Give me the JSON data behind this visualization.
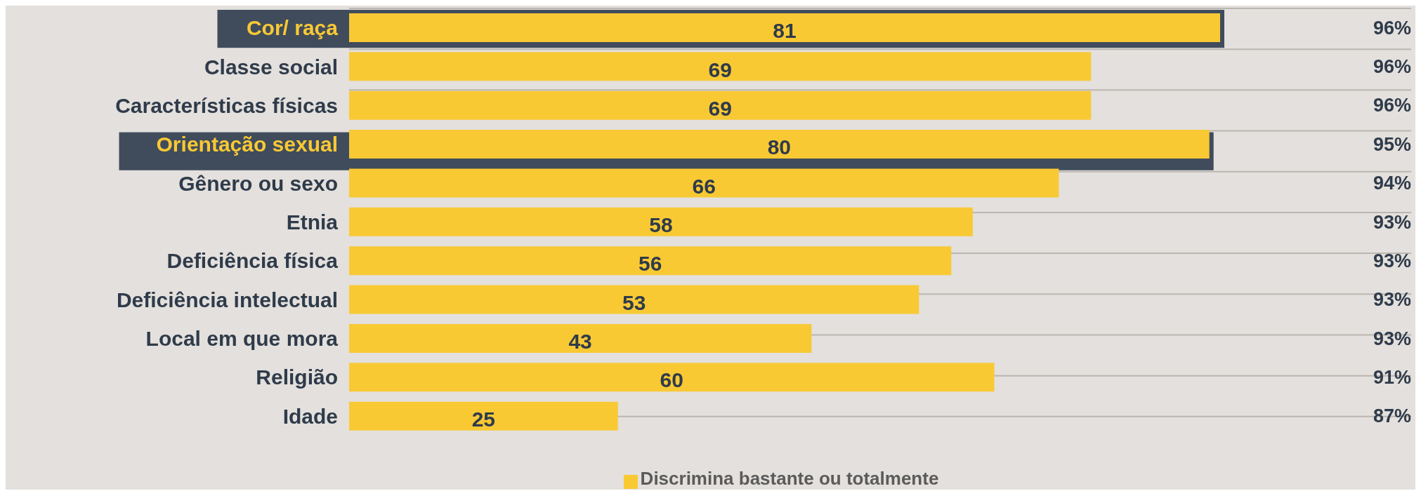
{
  "chart_data": {
    "type": "bar",
    "orientation": "horizontal",
    "categories": [
      "Cor/ raça",
      "Classe social",
      "Características físicas",
      "Orientação sexual",
      "Gênero ou sexo",
      "Etnia",
      "Deficiência física",
      "Deficiência intelectual",
      "Local em que mora",
      "Religião",
      "Idade"
    ],
    "series": [
      {
        "name": "Discrimina bastante ou totalmente",
        "color": "#f9c934",
        "values": [
          81,
          69,
          69,
          80,
          66,
          58,
          56,
          53,
          43,
          60,
          25
        ]
      }
    ],
    "data_labels": true,
    "bands": [
      {
        "axis": "y",
        "from": "Cor/ raça",
        "to": "Cor/ raça",
        "color": "#404c5c"
      },
      {
        "axis": "y",
        "from": "Orientação sexual",
        "to": "Orientação sexual",
        "color": "#404c5c"
      }
    ],
    "annotations": [
      "96%",
      "96%",
      "96%",
      "95%",
      "94%",
      "93%",
      "93%",
      "93%",
      "93%",
      "91%",
      "87%"
    ],
    "grid": "y",
    "legend": "bottom"
  }
}
